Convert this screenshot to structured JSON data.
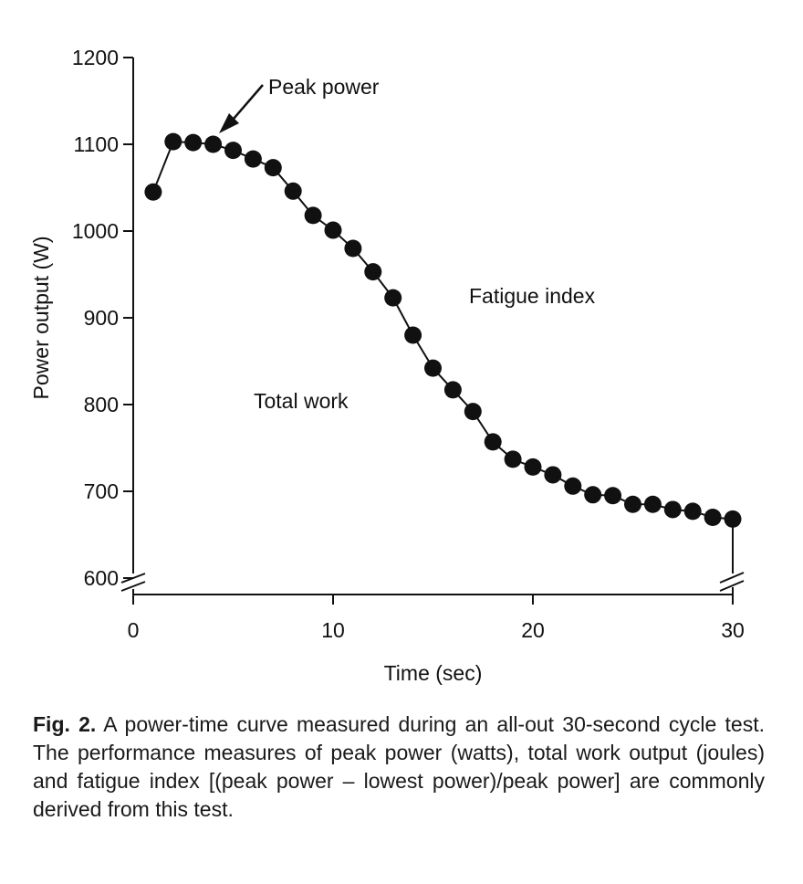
{
  "chart_data": {
    "type": "line",
    "title": "",
    "xlabel": "Time (sec)",
    "ylabel": "Power output (W)",
    "xlim": [
      0,
      30
    ],
    "ylim": [
      600,
      1200
    ],
    "xticks": [
      0,
      10,
      20,
      30
    ],
    "yticks": [
      600,
      700,
      800,
      900,
      1000,
      1100,
      1200
    ],
    "grid": false,
    "legend": "none",
    "series": [
      {
        "name": "Power output",
        "x": [
          1,
          2,
          3,
          4,
          5,
          6,
          7,
          8,
          9,
          10,
          11,
          12,
          13,
          14,
          15,
          16,
          17,
          18,
          19,
          20,
          21,
          22,
          23,
          24,
          25,
          26,
          27,
          28,
          29,
          30
        ],
        "values": [
          1045,
          1103,
          1102,
          1100,
          1093,
          1083,
          1073,
          1046,
          1018,
          1001,
          980,
          953,
          923,
          880,
          842,
          817,
          792,
          757,
          737,
          728,
          719,
          706,
          696,
          695,
          685,
          685,
          679,
          677,
          670,
          668
        ]
      }
    ],
    "annotations": {
      "peak": "Peak power",
      "fatigue": "Fatigue index",
      "total": "Total work"
    }
  },
  "caption": {
    "label": "Fig. 2.",
    "text": "A power-time curve measured during an all-out 30-second cycle test. The performance measures of peak power (watts), total work output (joules) and fatigue index [(peak power – lowest power)/peak power] are commonly derived from this test."
  }
}
